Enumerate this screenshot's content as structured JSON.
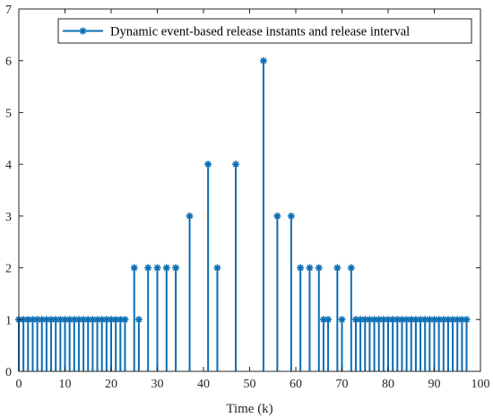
{
  "colors": {
    "series": "#0a6db4",
    "axis": "#262626",
    "background": "#ffffff"
  },
  "chart_data": {
    "type": "stem",
    "title": "",
    "xlabel": "Time (k)",
    "ylabel": "",
    "xlim": [
      0,
      100
    ],
    "ylim": [
      0,
      7
    ],
    "xticks": [
      "0",
      "10",
      "20",
      "30",
      "40",
      "50",
      "60",
      "70",
      "80",
      "90",
      "100"
    ],
    "yticks": [
      "0",
      "1",
      "2",
      "3",
      "4",
      "5",
      "6",
      "7"
    ],
    "grid": false,
    "legend_position": "top-right",
    "marker": "asterisk",
    "series": [
      {
        "name": "Dynamic event-based release instants and release interval",
        "points": [
          [
            0,
            1
          ],
          [
            1,
            1
          ],
          [
            2,
            1
          ],
          [
            3,
            1
          ],
          [
            4,
            1
          ],
          [
            5,
            1
          ],
          [
            6,
            1
          ],
          [
            7,
            1
          ],
          [
            8,
            1
          ],
          [
            9,
            1
          ],
          [
            10,
            1
          ],
          [
            11,
            1
          ],
          [
            12,
            1
          ],
          [
            13,
            1
          ],
          [
            14,
            1
          ],
          [
            15,
            1
          ],
          [
            16,
            1
          ],
          [
            17,
            1
          ],
          [
            18,
            1
          ],
          [
            19,
            1
          ],
          [
            20,
            1
          ],
          [
            21,
            1
          ],
          [
            22,
            1
          ],
          [
            23,
            1
          ],
          [
            25,
            2
          ],
          [
            26,
            1
          ],
          [
            28,
            2
          ],
          [
            30,
            2
          ],
          [
            32,
            2
          ],
          [
            34,
            2
          ],
          [
            37,
            3
          ],
          [
            41,
            4
          ],
          [
            43,
            2
          ],
          [
            47,
            4
          ],
          [
            53,
            6
          ],
          [
            56,
            3
          ],
          [
            59,
            3
          ],
          [
            61,
            2
          ],
          [
            63,
            2
          ],
          [
            65,
            2
          ],
          [
            66,
            1
          ],
          [
            67,
            1
          ],
          [
            69,
            2
          ],
          [
            70,
            1
          ],
          [
            72,
            2
          ],
          [
            73,
            1
          ],
          [
            74,
            1
          ],
          [
            75,
            1
          ],
          [
            76,
            1
          ],
          [
            77,
            1
          ],
          [
            78,
            1
          ],
          [
            79,
            1
          ],
          [
            80,
            1
          ],
          [
            81,
            1
          ],
          [
            82,
            1
          ],
          [
            83,
            1
          ],
          [
            84,
            1
          ],
          [
            85,
            1
          ],
          [
            86,
            1
          ],
          [
            87,
            1
          ],
          [
            88,
            1
          ],
          [
            89,
            1
          ],
          [
            90,
            1
          ],
          [
            91,
            1
          ],
          [
            92,
            1
          ],
          [
            93,
            1
          ],
          [
            94,
            1
          ],
          [
            95,
            1
          ],
          [
            96,
            1
          ],
          [
            97,
            1
          ]
        ]
      }
    ]
  }
}
